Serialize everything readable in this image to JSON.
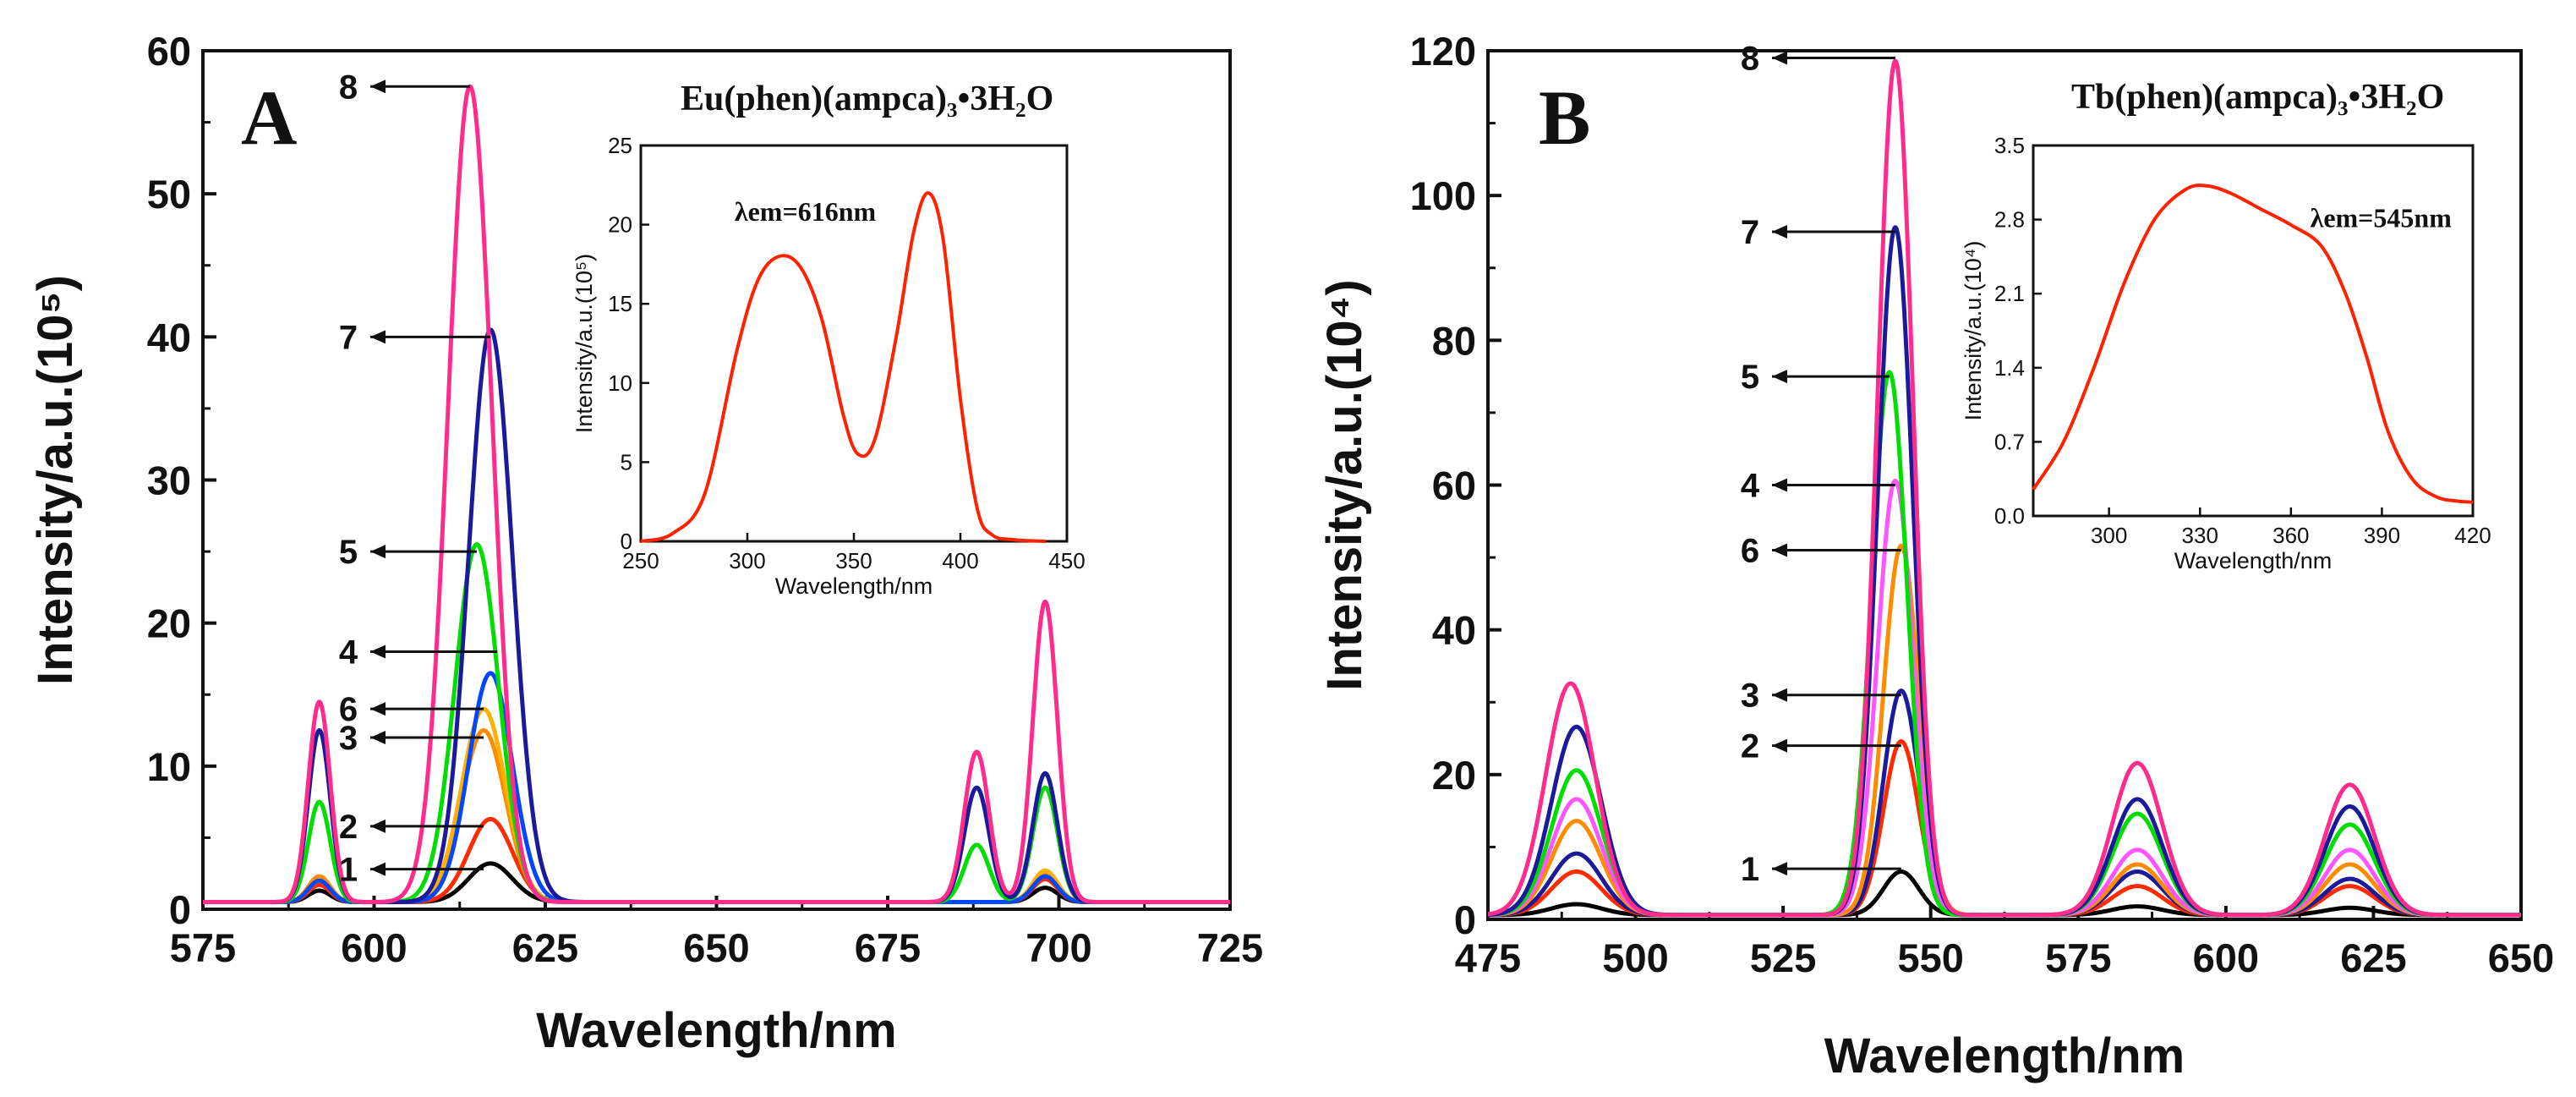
{
  "chart_data": [
    {
      "type": "line",
      "panel": "A",
      "compound": "Eu(phen)(ampca)₃•3H₂O",
      "xlabel": "Wavelength/nm",
      "ylabel": "Intensity/a.u.(10⁵)",
      "xlim": [
        575,
        725
      ],
      "ylim": [
        0,
        60
      ],
      "x_ticks": [
        "575",
        "600",
        "625",
        "650",
        "675",
        "700",
        "725"
      ],
      "y_ticks": [
        "0",
        "10",
        "20",
        "30",
        "40",
        "50",
        "60"
      ],
      "series": [
        {
          "name": "1",
          "color": "#000000",
          "peaks": [
            {
              "x": 592,
              "y": 0.8
            },
            {
              "x": 617,
              "y": 2.7
            },
            {
              "x": 698,
              "y": 1.0
            }
          ]
        },
        {
          "name": "2",
          "color": "#ff2a00",
          "peaks": [
            {
              "x": 592,
              "y": 1.2
            },
            {
              "x": 617,
              "y": 5.8
            },
            {
              "x": 698,
              "y": 1.6
            }
          ]
        },
        {
          "name": "3",
          "color": "#ff8c00",
          "peaks": [
            {
              "x": 592,
              "y": 1.8
            },
            {
              "x": 616,
              "y": 12.0
            },
            {
              "x": 698,
              "y": 2.0
            }
          ]
        },
        {
          "name": "6",
          "color": "#ffb000",
          "peaks": [
            {
              "x": 592,
              "y": 1.5
            },
            {
              "x": 616,
              "y": 13.5
            },
            {
              "x": 698,
              "y": 2.2
            }
          ]
        },
        {
          "name": "4",
          "color": "#0047ff",
          "peaks": [
            {
              "x": 592,
              "y": 1.5
            },
            {
              "x": 617,
              "y": 16.0
            },
            {
              "x": 698,
              "y": 1.8
            }
          ]
        },
        {
          "name": "5",
          "color": "#00dd00",
          "peaks": [
            {
              "x": 592,
              "y": 7.0
            },
            {
              "x": 615,
              "y": 25.0
            },
            {
              "x": 688,
              "y": 4.0
            },
            {
              "x": 698,
              "y": 8.0
            }
          ]
        },
        {
          "name": "7",
          "color": "#1a1a9a",
          "peaks": [
            {
              "x": 592,
              "y": 12.0
            },
            {
              "x": 617,
              "y": 40.0
            },
            {
              "x": 688,
              "y": 8.0
            },
            {
              "x": 698,
              "y": 9.0
            }
          ]
        },
        {
          "name": "8",
          "color": "#ff2c8c",
          "peaks": [
            {
              "x": 592,
              "y": 14.0
            },
            {
              "x": 614,
              "y": 57.0
            },
            {
              "x": 688,
              "y": 10.5
            },
            {
              "x": 698,
              "y": 21.0
            }
          ]
        }
      ],
      "labels": [
        {
          "text": "8",
          "y": 57.5,
          "arrow_x": 614
        },
        {
          "text": "7",
          "y": 40.0,
          "arrow_x": 617
        },
        {
          "text": "5",
          "y": 25.0,
          "arrow_x": 615
        },
        {
          "text": "4",
          "y": 18.0,
          "arrow_x": 618
        },
        {
          "text": "6",
          "y": 14.0,
          "arrow_x": 616
        },
        {
          "text": "3",
          "y": 12.0,
          "arrow_x": 616
        },
        {
          "text": "2",
          "y": 5.8,
          "arrow_x": 616
        },
        {
          "text": "1",
          "y": 2.8,
          "arrow_x": 616
        }
      ],
      "inset": {
        "xlabel": "Wavelength/nm",
        "ylabel": "Intensity/a.u.(10⁵)",
        "xlim": [
          250,
          450
        ],
        "ylim": [
          0,
          25
        ],
        "x_ticks": [
          "250",
          "300",
          "350",
          "400",
          "450"
        ],
        "y_ticks": [
          "0",
          "5",
          "10",
          "15",
          "20",
          "25"
        ],
        "annotation": "λem=616nm",
        "color": "#ff2200",
        "x": [
          250,
          265,
          280,
          295,
          305,
          315,
          325,
          335,
          345,
          352,
          360,
          370,
          378,
          385,
          392,
          400,
          408,
          415,
          425,
          440
        ],
        "y": [
          0,
          0.5,
          3,
          12,
          16.5,
          18,
          17.3,
          14,
          8,
          5.5,
          6.5,
          13,
          19.5,
          22,
          19,
          9,
          2,
          0.4,
          0.1,
          0
        ]
      }
    },
    {
      "type": "line",
      "panel": "B",
      "compound": "Tb(phen)(ampca)₃•3H₂O",
      "xlabel": "Wavelength/nm",
      "ylabel": "Intensity/a.u.(10⁴)",
      "xlim": [
        475,
        650
      ],
      "ylim": [
        0,
        120
      ],
      "x_ticks": [
        "475",
        "500",
        "525",
        "550",
        "575",
        "600",
        "625",
        "650"
      ],
      "y_ticks": [
        "0",
        "20",
        "40",
        "60",
        "80",
        "100",
        "120"
      ],
      "series": [
        {
          "name": "1",
          "color": "#000000",
          "peaks": [
            {
              "x": 490,
              "y": 1.5
            },
            {
              "x": 545,
              "y": 6.0
            },
            {
              "x": 585,
              "y": 1.2
            },
            {
              "x": 621,
              "y": 1.0
            }
          ]
        },
        {
          "name": "2",
          "color": "#ff2a00",
          "peaks": [
            {
              "x": 490,
              "y": 6.0
            },
            {
              "x": 545,
              "y": 24.0
            },
            {
              "x": 585,
              "y": 4.0
            },
            {
              "x": 621,
              "y": 4.0
            }
          ]
        },
        {
          "name": "3",
          "color": "#1a1a9a",
          "peaks": [
            {
              "x": 490,
              "y": 8.5
            },
            {
              "x": 545,
              "y": 31.0
            },
            {
              "x": 585,
              "y": 6.0
            },
            {
              "x": 621,
              "y": 5.0
            }
          ]
        },
        {
          "name": "6",
          "color": "#ff8c00",
          "peaks": [
            {
              "x": 490,
              "y": 13.0
            },
            {
              "x": 545,
              "y": 51.0
            },
            {
              "x": 585,
              "y": 7.0
            },
            {
              "x": 621,
              "y": 7.0
            }
          ]
        },
        {
          "name": "4",
          "color": "#ff55ff",
          "peaks": [
            {
              "x": 490,
              "y": 16.0
            },
            {
              "x": 544,
              "y": 60.0
            },
            {
              "x": 585,
              "y": 9.0
            },
            {
              "x": 621,
              "y": 9.0
            }
          ]
        },
        {
          "name": "5",
          "color": "#00dd00",
          "peaks": [
            {
              "x": 490,
              "y": 20.0
            },
            {
              "x": 543,
              "y": 75.0
            },
            {
              "x": 585,
              "y": 14.0
            },
            {
              "x": 621,
              "y": 12.5
            }
          ]
        },
        {
          "name": "7",
          "color": "#1a1a9a",
          "peaks": [
            {
              "x": 490,
              "y": 26.0
            },
            {
              "x": 544,
              "y": 95.0
            },
            {
              "x": 585,
              "y": 16.0
            },
            {
              "x": 621,
              "y": 15.0
            }
          ]
        },
        {
          "name": "8",
          "color": "#ff2c8c",
          "peaks": [
            {
              "x": 489,
              "y": 32.0
            },
            {
              "x": 544,
              "y": 118.0
            },
            {
              "x": 585,
              "y": 21.0
            },
            {
              "x": 621,
              "y": 18.0
            }
          ]
        }
      ],
      "labels": [
        {
          "text": "8",
          "y": 119,
          "arrow_x": 544
        },
        {
          "text": "7",
          "y": 95,
          "arrow_x": 544
        },
        {
          "text": "5",
          "y": 75,
          "arrow_x": 543
        },
        {
          "text": "4",
          "y": 60,
          "arrow_x": 544
        },
        {
          "text": "6",
          "y": 51,
          "arrow_x": 545
        },
        {
          "text": "3",
          "y": 31,
          "arrow_x": 545
        },
        {
          "text": "2",
          "y": 24,
          "arrow_x": 545
        },
        {
          "text": "1",
          "y": 7,
          "arrow_x": 545
        }
      ],
      "inset": {
        "xlabel": "Wavelength/nm",
        "ylabel": "Intensity/a.u.(10⁴)",
        "xlim": [
          275,
          420
        ],
        "ylim": [
          0,
          3.5
        ],
        "x_ticks": [
          "300",
          "330",
          "360",
          "390",
          "420"
        ],
        "y_ticks": [
          "0.0",
          "0.7",
          "1.4",
          "2.1",
          "2.8",
          "3.5"
        ],
        "annotation": "λem=545nm",
        "color": "#ff2200",
        "x": [
          275,
          285,
          295,
          305,
          315,
          325,
          332,
          340,
          350,
          360,
          370,
          378,
          385,
          392,
          400,
          408,
          415,
          420
        ],
        "y": [
          0.25,
          0.7,
          1.4,
          2.2,
          2.8,
          3.08,
          3.12,
          3.05,
          2.9,
          2.75,
          2.55,
          2.1,
          1.5,
          0.8,
          0.35,
          0.18,
          0.14,
          0.13
        ]
      }
    }
  ]
}
